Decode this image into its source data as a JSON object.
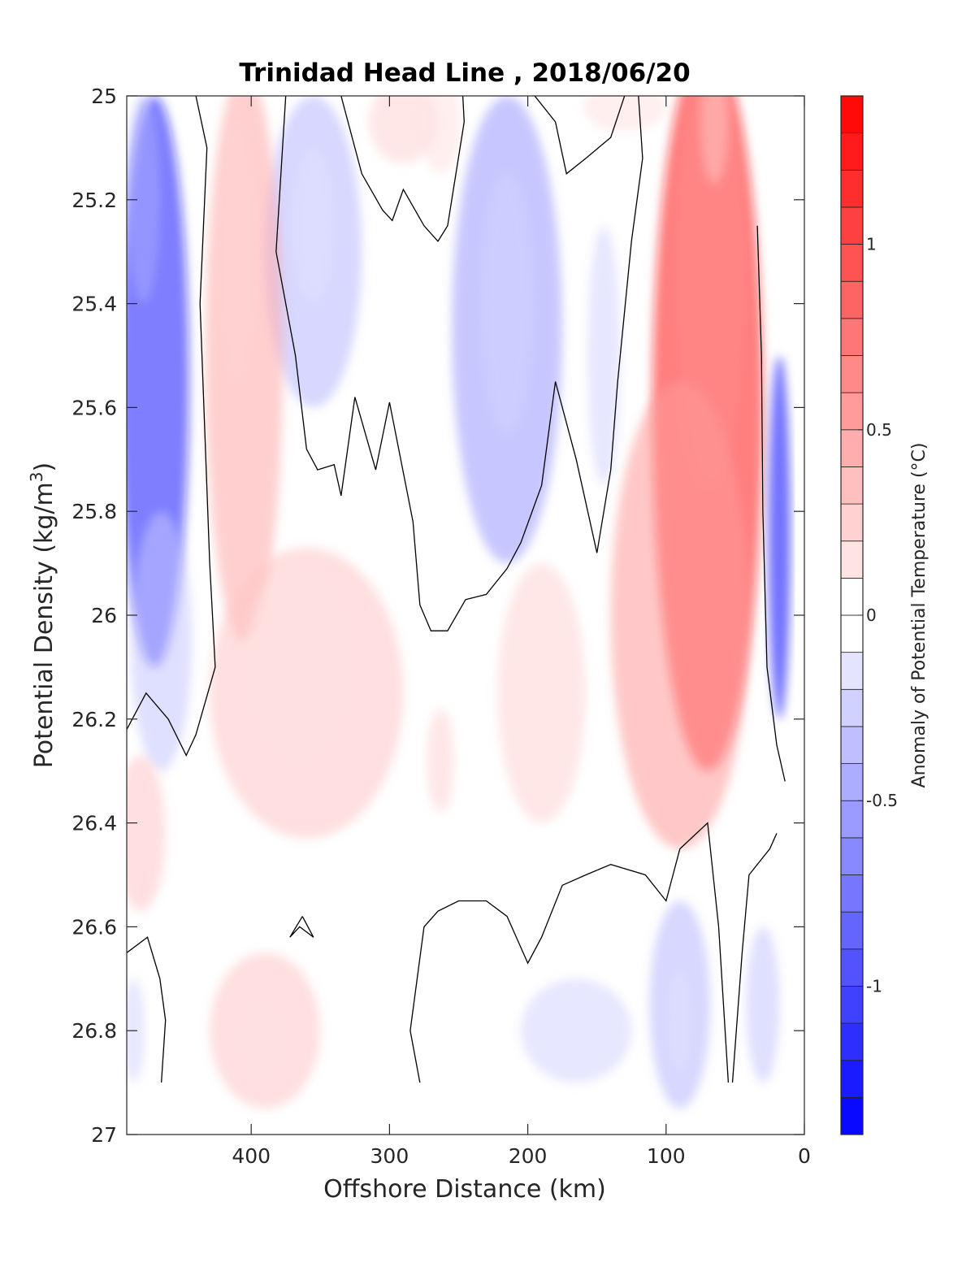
{
  "chart_data": {
    "type": "heatmap",
    "title": "Trinidad Head Line , 2018/06/20",
    "xlabel": "Offshore Distance (km)",
    "ylabel": "Potential Density (kg/m",
    "ylabel_sup": "3",
    "ylabel_close": ")",
    "colorbar_label": "Anomaly of Potential Temperature (°C)",
    "x_axis": {
      "lim": [
        490,
        0
      ],
      "reversed": true,
      "ticks": [
        400,
        300,
        200,
        100,
        0
      ]
    },
    "y_axis": {
      "lim": [
        25,
        27
      ],
      "reversed": true,
      "ticks": [
        "25",
        "25.2",
        "25.4",
        "25.6",
        "25.8",
        "26",
        "26.2",
        "26.4",
        "26.6",
        "26.8",
        "27"
      ],
      "tick_values": [
        25,
        25.2,
        25.4,
        25.6,
        25.8,
        26,
        26.2,
        26.4,
        26.6,
        26.8,
        27
      ]
    },
    "colorbar": {
      "lim": [
        -1.4,
        1.4
      ],
      "step": 0.1,
      "ticks": [
        "-1",
        "-0.5",
        "0",
        "0.5",
        "1"
      ],
      "tick_values": [
        -1,
        -0.5,
        0,
        0.5,
        1
      ]
    },
    "grid": false,
    "colormap": {
      "negative": "#0000ff",
      "neutral": "#ffffff",
      "positive": "#ff0000"
    },
    "contour_level": 0,
    "regions": [
      {
        "name": "west-cold-core",
        "cx": 470,
        "cy": 25.55,
        "rx": 25,
        "ry": 0.55,
        "v": -0.8
      },
      {
        "name": "west-cold-upper",
        "cx": 478,
        "cy": 25.2,
        "rx": 12,
        "ry": 0.2,
        "v": -0.3
      },
      {
        "name": "west-cold-lower",
        "cx": 465,
        "cy": 26.05,
        "rx": 22,
        "ry": 0.25,
        "v": -0.2
      },
      {
        "name": "west-warm-deep",
        "cx": 480,
        "cy": 26.42,
        "rx": 18,
        "ry": 0.15,
        "v": 0.2
      },
      {
        "name": "cold-blob-350",
        "cx": 355,
        "cy": 25.3,
        "rx": 35,
        "ry": 0.3,
        "v": -0.25
      },
      {
        "name": "cold-blob-350-core",
        "cx": 355,
        "cy": 25.25,
        "rx": 15,
        "ry": 0.15,
        "v": -0.1
      },
      {
        "name": "warm-column-400",
        "cx": 405,
        "cy": 25.5,
        "rx": 28,
        "ry": 0.55,
        "v": 0.3
      },
      {
        "name": "warm-column-400-core",
        "cx": 410,
        "cy": 25.3,
        "rx": 12,
        "ry": 0.25,
        "v": 0.15
      },
      {
        "name": "warm-spread-mid",
        "cx": 360,
        "cy": 26.15,
        "rx": 70,
        "ry": 0.28,
        "v": 0.2
      },
      {
        "name": "warm-spread-mid-core",
        "cx": 365,
        "cy": 26.1,
        "rx": 40,
        "ry": 0.2,
        "v": 0.1
      },
      {
        "name": "warm-top-290",
        "cx": 290,
        "cy": 25.05,
        "rx": 25,
        "ry": 0.08,
        "v": 0.15
      },
      {
        "name": "warm-top-260",
        "cx": 263,
        "cy": 25.05,
        "rx": 15,
        "ry": 0.1,
        "v": 0.1
      },
      {
        "name": "cold-blob-215",
        "cx": 215,
        "cy": 25.45,
        "rx": 40,
        "ry": 0.45,
        "v": -0.35
      },
      {
        "name": "cold-blob-215-core",
        "cx": 215,
        "cy": 25.4,
        "rx": 18,
        "ry": 0.25,
        "v": -0.15
      },
      {
        "name": "warm-200",
        "cx": 190,
        "cy": 26.15,
        "rx": 32,
        "ry": 0.25,
        "v": 0.15
      },
      {
        "name": "warm-265",
        "cx": 263,
        "cy": 26.28,
        "rx": 10,
        "ry": 0.1,
        "v": 0.15
      },
      {
        "name": "cold-140",
        "cx": 145,
        "cy": 25.5,
        "rx": 12,
        "ry": 0.25,
        "v": -0.15
      },
      {
        "name": "warm-top-130",
        "cx": 130,
        "cy": 25.02,
        "rx": 30,
        "ry": 0.05,
        "v": 0.1
      },
      {
        "name": "coastal-warm-band",
        "cx": 70,
        "cy": 25.6,
        "rx": 40,
        "ry": 0.7,
        "v": 0.8
      },
      {
        "name": "coastal-warm-core",
        "cx": 68,
        "cy": 25.35,
        "rx": 25,
        "ry": 0.4,
        "v": 0.4
      },
      {
        "name": "coastal-warm-top",
        "cx": 65,
        "cy": 25.05,
        "rx": 10,
        "ry": 0.12,
        "v": 0.2
      },
      {
        "name": "coastal-warm-outer",
        "cx": 90,
        "cy": 26.0,
        "rx": 50,
        "ry": 0.45,
        "v": 0.35
      },
      {
        "name": "nearshore-cold",
        "cx": 18,
        "cy": 25.85,
        "rx": 8,
        "ry": 0.35,
        "v": -0.9
      },
      {
        "name": "deep-cold-90",
        "cx": 90,
        "cy": 26.75,
        "rx": 22,
        "ry": 0.2,
        "v": -0.25
      },
      {
        "name": "deep-cold-90-core",
        "cx": 90,
        "cy": 26.78,
        "rx": 8,
        "ry": 0.1,
        "v": -0.1
      },
      {
        "name": "deep-cold-160",
        "cx": 165,
        "cy": 26.8,
        "rx": 40,
        "ry": 0.1,
        "v": -0.15
      },
      {
        "name": "deep-cold-30",
        "cx": 30,
        "cy": 26.75,
        "rx": 12,
        "ry": 0.15,
        "v": -0.2
      },
      {
        "name": "deep-warm-400",
        "cx": 390,
        "cy": 26.8,
        "rx": 40,
        "ry": 0.15,
        "v": 0.2
      },
      {
        "name": "deep-warm-400-core",
        "cx": 390,
        "cy": 26.82,
        "rx": 22,
        "ry": 0.08,
        "v": 0.1
      },
      {
        "name": "deep-cold-west",
        "cx": 485,
        "cy": 26.8,
        "rx": 8,
        "ry": 0.1,
        "v": -0.15
      }
    ],
    "contours": [
      {
        "name": "zero-contour-west",
        "points": [
          [
            440,
            25
          ],
          [
            432,
            25.1
          ],
          [
            437,
            25.4
          ],
          [
            430,
            25.9
          ],
          [
            426,
            26.1
          ],
          [
            440,
            26.23
          ],
          [
            447,
            26.27
          ],
          [
            460,
            26.2
          ],
          [
            476,
            26.15
          ],
          [
            490,
            26.22
          ]
        ]
      },
      {
        "name": "zero-contour-mid",
        "points": [
          [
            375,
            25
          ],
          [
            382,
            25.3
          ],
          [
            368,
            25.5
          ],
          [
            360,
            25.68
          ],
          [
            352,
            25.72
          ],
          [
            340,
            25.71
          ],
          [
            335,
            25.77
          ],
          [
            325,
            25.58
          ],
          [
            310,
            25.72
          ],
          [
            300,
            25.59
          ],
          [
            283,
            25.82
          ],
          [
            278,
            25.98
          ],
          [
            270,
            26.03
          ],
          [
            258,
            26.03
          ],
          [
            245,
            25.97
          ],
          [
            230,
            25.96
          ],
          [
            215,
            25.91
          ],
          [
            205,
            25.86
          ],
          [
            190,
            25.75
          ],
          [
            180,
            25.55
          ],
          [
            165,
            25.7
          ],
          [
            150,
            25.88
          ],
          [
            140,
            25.72
          ],
          [
            135,
            25.55
          ],
          [
            125,
            25.28
          ],
          [
            117,
            25.12
          ],
          [
            120,
            25
          ]
        ]
      },
      {
        "name": "zero-contour-top",
        "points": [
          [
            335,
            25
          ],
          [
            320,
            25.15
          ],
          [
            305,
            25.22
          ],
          [
            298,
            25.24
          ],
          [
            290,
            25.18
          ],
          [
            275,
            25.25
          ],
          [
            265,
            25.28
          ],
          [
            258,
            25.25
          ],
          [
            246,
            25.05
          ],
          [
            247,
            25
          ]
        ]
      },
      {
        "name": "zero-contour-top-right",
        "points": [
          [
            195,
            25
          ],
          [
            180,
            25.05
          ],
          [
            172,
            25.15
          ],
          [
            158,
            25.12
          ],
          [
            140,
            25.08
          ],
          [
            130,
            25
          ]
        ]
      },
      {
        "name": "zero-contour-nearshore",
        "points": [
          [
            34,
            25.25
          ],
          [
            31,
            25.5
          ],
          [
            30,
            25.8
          ],
          [
            27,
            26.1
          ],
          [
            20,
            26.25
          ],
          [
            14,
            26.32
          ]
        ]
      },
      {
        "name": "zero-contour-deep-east",
        "points": [
          [
            55,
            26.9
          ],
          [
            62,
            26.6
          ],
          [
            70,
            26.4
          ],
          [
            90,
            26.45
          ],
          [
            95,
            26.5
          ],
          [
            100,
            26.55
          ],
          [
            115,
            26.5
          ],
          [
            140,
            26.48
          ],
          [
            158,
            26.5
          ],
          [
            175,
            26.52
          ],
          [
            190,
            26.62
          ],
          [
            200,
            26.67
          ],
          [
            215,
            26.58
          ],
          [
            230,
            26.55
          ],
          [
            250,
            26.55
          ],
          [
            265,
            26.57
          ],
          [
            275,
            26.6
          ],
          [
            285,
            26.8
          ],
          [
            278,
            26.9
          ]
        ]
      },
      {
        "name": "zero-contour-deep-east-right",
        "points": [
          [
            52,
            26.9
          ],
          [
            45,
            26.65
          ],
          [
            40,
            26.5
          ],
          [
            25,
            26.45
          ],
          [
            20,
            26.42
          ]
        ]
      },
      {
        "name": "zero-contour-deep-west",
        "points": [
          [
            490,
            26.65
          ],
          [
            475,
            26.62
          ],
          [
            466,
            26.7
          ],
          [
            462,
            26.78
          ],
          [
            465,
            26.9
          ]
        ]
      },
      {
        "name": "zero-contour-small-loop",
        "points": [
          [
            363,
            26.58
          ],
          [
            355,
            26.62
          ],
          [
            365,
            26.6
          ],
          [
            372,
            26.62
          ],
          [
            363,
            26.58
          ]
        ]
      }
    ]
  }
}
